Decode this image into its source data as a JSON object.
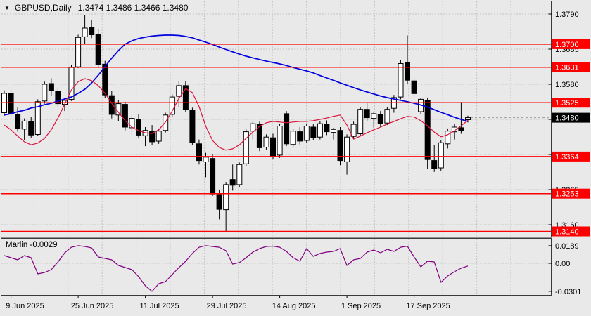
{
  "header": {
    "marker": "▼",
    "symbol": "GBPUSD,Daily",
    "ohlc": "1.3474 1.3486 1.3466 1.3480"
  },
  "indicator_label": {
    "name": "Marlin",
    "value": "-0.0029"
  },
  "colors": {
    "background": "#e9e9e9",
    "pane_border": "#3a3a3a",
    "grid": "#c4c4c4",
    "bull": "#ffffff",
    "bear": "#000000",
    "outline": "#000000",
    "ma_blue": "#0000dd",
    "ma_red": "#dc143c",
    "level_line": "#ff0000",
    "level_badge_bg": "#ff0000",
    "level_badge_text": "#ffffff",
    "current_badge_bg": "#000000",
    "current_badge_text": "#ffffff",
    "current_dash": "#9a9a9a",
    "marlin_line": "#800080",
    "text": "#000000"
  },
  "chart_data": {
    "type": "candlestick",
    "title": "GBPUSD,Daily",
    "symbol": "GBPUSD",
    "timeframe": "Daily",
    "open": "1.3474",
    "high": "1.3486",
    "low": "1.3466",
    "close": "1.3480",
    "price_axis_labels": [
      "1.3790",
      "1.3685",
      "1.3580",
      "1.3475",
      "1.3370",
      "1.3265",
      "1.3160"
    ],
    "level_lines": [
      "1.3700",
      "1.3631",
      "1.3525",
      "1.3364",
      "1.3253",
      "1.3140"
    ],
    "current_price": "1.3480",
    "date_labels": [
      {
        "text": "9 Jun 2025",
        "bar": 1
      },
      {
        "text": "25 Jun 2025",
        "bar": 11
      },
      {
        "text": "11 Jul 2025",
        "bar": 21
      },
      {
        "text": "29 Jul 2025",
        "bar": 31
      },
      {
        "text": "14 Aug 2025",
        "bar": 41
      },
      {
        "text": "1 Sep 2025",
        "bar": 51
      },
      {
        "text": "17 Sep 2025",
        "bar": 61
      }
    ],
    "candles": [
      [
        1.3495,
        1.3562,
        1.3486,
        1.3553
      ],
      [
        1.3552,
        1.3565,
        1.3478,
        1.3492
      ],
      [
        1.349,
        1.3512,
        1.3438,
        1.3448
      ],
      [
        1.3446,
        1.3478,
        1.3412,
        1.347
      ],
      [
        1.3468,
        1.3482,
        1.342,
        1.3428
      ],
      [
        1.343,
        1.3535,
        1.3425,
        1.3528
      ],
      [
        1.353,
        1.3588,
        1.3522,
        1.358
      ],
      [
        1.3582,
        1.3598,
        1.3545,
        1.356
      ],
      [
        1.3558,
        1.357,
        1.3512,
        1.3522
      ],
      [
        1.352,
        1.354,
        1.35,
        1.3532
      ],
      [
        1.3535,
        1.3638,
        1.353,
        1.363
      ],
      [
        1.3632,
        1.3728,
        1.3628,
        1.372
      ],
      [
        1.3722,
        1.3788,
        1.37,
        1.3748
      ],
      [
        1.375,
        1.3772,
        1.3718,
        1.3728
      ],
      [
        1.373,
        1.3745,
        1.3628,
        1.3638
      ],
      [
        1.364,
        1.365,
        1.3538,
        1.3548
      ],
      [
        1.3546,
        1.356,
        1.3478,
        1.349
      ],
      [
        1.3488,
        1.3532,
        1.347,
        1.3522
      ],
      [
        1.352,
        1.3528,
        1.3442,
        1.3452
      ],
      [
        1.345,
        1.3488,
        1.343,
        1.3478
      ],
      [
        1.3476,
        1.349,
        1.3418,
        1.3428
      ],
      [
        1.3426,
        1.3452,
        1.3395,
        1.3442
      ],
      [
        1.344,
        1.3458,
        1.3398,
        1.3408
      ],
      [
        1.341,
        1.3448,
        1.3402,
        1.344
      ],
      [
        1.3442,
        1.3495,
        1.3436,
        1.3488
      ],
      [
        1.349,
        1.355,
        1.3482,
        1.3542
      ],
      [
        1.3544,
        1.359,
        1.3512,
        1.3576
      ],
      [
        1.3576,
        1.359,
        1.3498,
        1.3505
      ],
      [
        1.3502,
        1.351,
        1.3398,
        1.3405
      ],
      [
        1.3402,
        1.3415,
        1.334,
        1.3352
      ],
      [
        1.3348,
        1.3375,
        1.3302,
        1.3362
      ],
      [
        1.3358,
        1.337,
        1.3246,
        1.3252
      ],
      [
        1.325,
        1.3264,
        1.3176,
        1.3206
      ],
      [
        1.3205,
        1.3288,
        1.314,
        1.328
      ],
      [
        1.3295,
        1.334,
        1.3262,
        1.3278
      ],
      [
        1.328,
        1.3346,
        1.3272,
        1.334
      ],
      [
        1.3342,
        1.3445,
        1.3335,
        1.3438
      ],
      [
        1.344,
        1.347,
        1.3415,
        1.3462
      ],
      [
        1.346,
        1.3468,
        1.338,
        1.339
      ],
      [
        1.3392,
        1.343,
        1.3385,
        1.3422
      ],
      [
        1.342,
        1.3432,
        1.3355,
        1.3365
      ],
      [
        1.3368,
        1.3462,
        1.336,
        1.3455
      ],
      [
        1.3492,
        1.35,
        1.3395,
        1.3402
      ],
      [
        1.34,
        1.3448,
        1.3392,
        1.344
      ],
      [
        1.3438,
        1.3452,
        1.34,
        1.341
      ],
      [
        1.3412,
        1.3462,
        1.3405,
        1.3455
      ],
      [
        1.3452,
        1.346,
        1.3412,
        1.342
      ],
      [
        1.3422,
        1.347,
        1.3415,
        1.3462
      ],
      [
        1.346,
        1.3472,
        1.3428,
        1.3438
      ],
      [
        1.3436,
        1.345,
        1.3415,
        1.3445
      ],
      [
        1.3442,
        1.3452,
        1.3338,
        1.3352
      ],
      [
        1.3348,
        1.343,
        1.331,
        1.3422
      ],
      [
        1.3424,
        1.3468,
        1.3416,
        1.346
      ],
      [
        1.3432,
        1.3512,
        1.3425,
        1.3505
      ],
      [
        1.3505,
        1.3525,
        1.347,
        1.348
      ],
      [
        1.3478,
        1.3498,
        1.345,
        1.3492
      ],
      [
        1.349,
        1.35,
        1.3452,
        1.3462
      ],
      [
        1.3464,
        1.3512,
        1.3458,
        1.3505
      ],
      [
        1.3508,
        1.3548,
        1.3495,
        1.354
      ],
      [
        1.3542,
        1.3652,
        1.3535,
        1.3642
      ],
      [
        1.3645,
        1.3726,
        1.358,
        1.3592
      ],
      [
        1.359,
        1.36,
        1.3542,
        1.3552
      ],
      [
        1.3498,
        1.354,
        1.349,
        1.3535
      ],
      [
        1.3532,
        1.3538,
        1.3326,
        1.3355
      ],
      [
        1.3352,
        1.3398,
        1.3318,
        1.3328
      ],
      [
        1.333,
        1.3412,
        1.3322,
        1.3405
      ],
      [
        1.3402,
        1.3448,
        1.3388,
        1.344
      ],
      [
        1.3438,
        1.3462,
        1.3415,
        1.3452
      ],
      [
        1.345,
        1.3527,
        1.3432,
        1.3442
      ],
      [
        1.3474,
        1.3486,
        1.3466,
        1.348
      ]
    ],
    "ma_blue": [
      1.3488,
      1.3492,
      1.3498,
      1.3502,
      1.3509,
      1.3513,
      1.3519,
      1.3523,
      1.353,
      1.3536,
      1.3542,
      1.3553,
      1.3565,
      1.3584,
      1.3607,
      1.3633,
      1.3658,
      1.3681,
      1.37,
      1.371,
      1.3717,
      1.3721,
      1.3724,
      1.3726,
      1.3727,
      1.3727,
      1.3726,
      1.3723,
      1.3719,
      1.3712,
      1.3706,
      1.3699,
      1.3691,
      1.3684,
      1.3677,
      1.367,
      1.3664,
      1.3659,
      1.3654,
      1.3649,
      1.3645,
      1.3641,
      1.3636,
      1.363,
      1.3625,
      1.362,
      1.3614,
      1.3606,
      1.3599,
      1.3592,
      1.3584,
      1.3577,
      1.357,
      1.3563,
      1.3557,
      1.3551,
      1.3545,
      1.354,
      1.3536,
      1.3532,
      1.3528,
      1.3523,
      1.3518,
      1.3512,
      1.3504,
      1.3496,
      1.3489,
      1.3481,
      1.3475,
      1.3469
    ],
    "ma_red": [
      1.3458,
      1.3444,
      1.3425,
      1.3408,
      1.3399,
      1.3404,
      1.3418,
      1.3444,
      1.3479,
      1.3521,
      1.3563,
      1.3588,
      1.3597,
      1.3591,
      1.3576,
      1.3553,
      1.3523,
      1.3496,
      1.3471,
      1.3452,
      1.3441,
      1.3435,
      1.3433,
      1.3444,
      1.3467,
      1.35,
      1.3538,
      1.3567,
      1.3555,
      1.3513,
      1.3454,
      1.3412,
      1.3391,
      1.3383,
      1.3387,
      1.3399,
      1.3418,
      1.3437,
      1.3454,
      1.3465,
      1.3469,
      1.3467,
      1.3465,
      1.3467,
      1.3469,
      1.3469,
      1.3471,
      1.3475,
      1.3479,
      1.3484,
      1.3488,
      1.3458,
      1.3416,
      1.3425,
      1.3435,
      1.3444,
      1.3452,
      1.3461,
      1.3469,
      1.3477,
      1.3484,
      1.3482,
      1.3471,
      1.3456,
      1.3437,
      1.3423,
      1.3429,
      1.3441,
      1.3456,
      1.3472
    ],
    "marlin": {
      "name": "Marlin",
      "last_value": "-0.0029",
      "axis_labels": [
        "0.0189",
        "0.00",
        "-0.0301"
      ],
      "values": [
        0.0083,
        0.006,
        0.0038,
        0.0083,
        0.006,
        -0.0113,
        -0.0098,
        -0.0068,
        0.0015,
        0.0113,
        0.0173,
        0.0189,
        0.0181,
        0.0166,
        0.0068,
        0.0053,
        0.0038,
        -0.0023,
        -0.0045,
        -0.0068,
        -0.0143,
        -0.0241,
        -0.0301,
        -0.0219,
        -0.0196,
        -0.0121,
        -0.0045,
        0.0023,
        0.0106,
        0.0173,
        0.0189,
        0.0181,
        0.0173,
        0.0136,
        -0.0008,
        0.0008,
        0.006,
        0.0121,
        0.0158,
        0.0181,
        0.0185,
        0.0173,
        0.0128,
        0.006,
        0.0023,
        0.0158,
        0.0075,
        0.0106,
        0.0121,
        0.0128,
        0.0158,
        -0.0023,
        0.0038,
        0.0053,
        0.0121,
        0.0143,
        0.0113,
        0.0151,
        0.0128,
        0.0173,
        0.0185,
        0.0068,
        -0.0038,
        0.0023,
        0.0015,
        -0.0204,
        -0.0136,
        -0.009,
        -0.0053,
        -0.0029
      ]
    }
  }
}
